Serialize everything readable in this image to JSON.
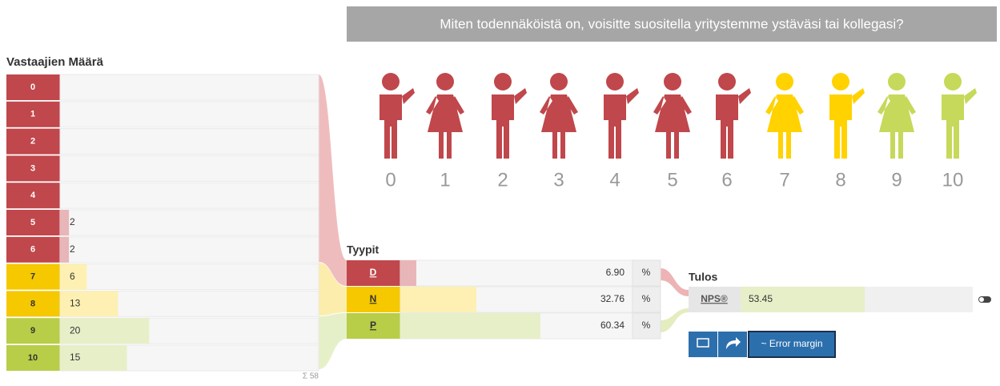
{
  "header": {
    "question": "Miten todennäköistä on, voisitte suositella yritystemme ystäväsi tai kollegasi?"
  },
  "scale_labels": [
    "0",
    "1",
    "2",
    "3",
    "4",
    "5",
    "6",
    "7",
    "8",
    "9",
    "10"
  ],
  "respondents": {
    "title": "Vastaajien Määrä",
    "rows": [
      {
        "label": "0",
        "count": null
      },
      {
        "label": "1",
        "count": null
      },
      {
        "label": "2",
        "count": null
      },
      {
        "label": "3",
        "count": null
      },
      {
        "label": "4",
        "count": null
      },
      {
        "label": "5",
        "count": 2
      },
      {
        "label": "6",
        "count": 2
      },
      {
        "label": "7",
        "count": 6
      },
      {
        "label": "8",
        "count": 13
      },
      {
        "label": "9",
        "count": 20
      },
      {
        "label": "10",
        "count": 15
      }
    ],
    "total": {
      "value": 58,
      "label": "Σ 58"
    }
  },
  "types": {
    "title": "Tyypit",
    "unit": "%",
    "rows": [
      {
        "label": "D",
        "value": 6.9,
        "value_label": "6.90"
      },
      {
        "label": "N",
        "value": 32.76
      },
      {
        "label": "P",
        "value": 60.34
      }
    ]
  },
  "result": {
    "title": "Tulos",
    "label": "NPS®",
    "value": 53.45
  },
  "buttons": {
    "error_margin": "~ Error margin"
  }
}
